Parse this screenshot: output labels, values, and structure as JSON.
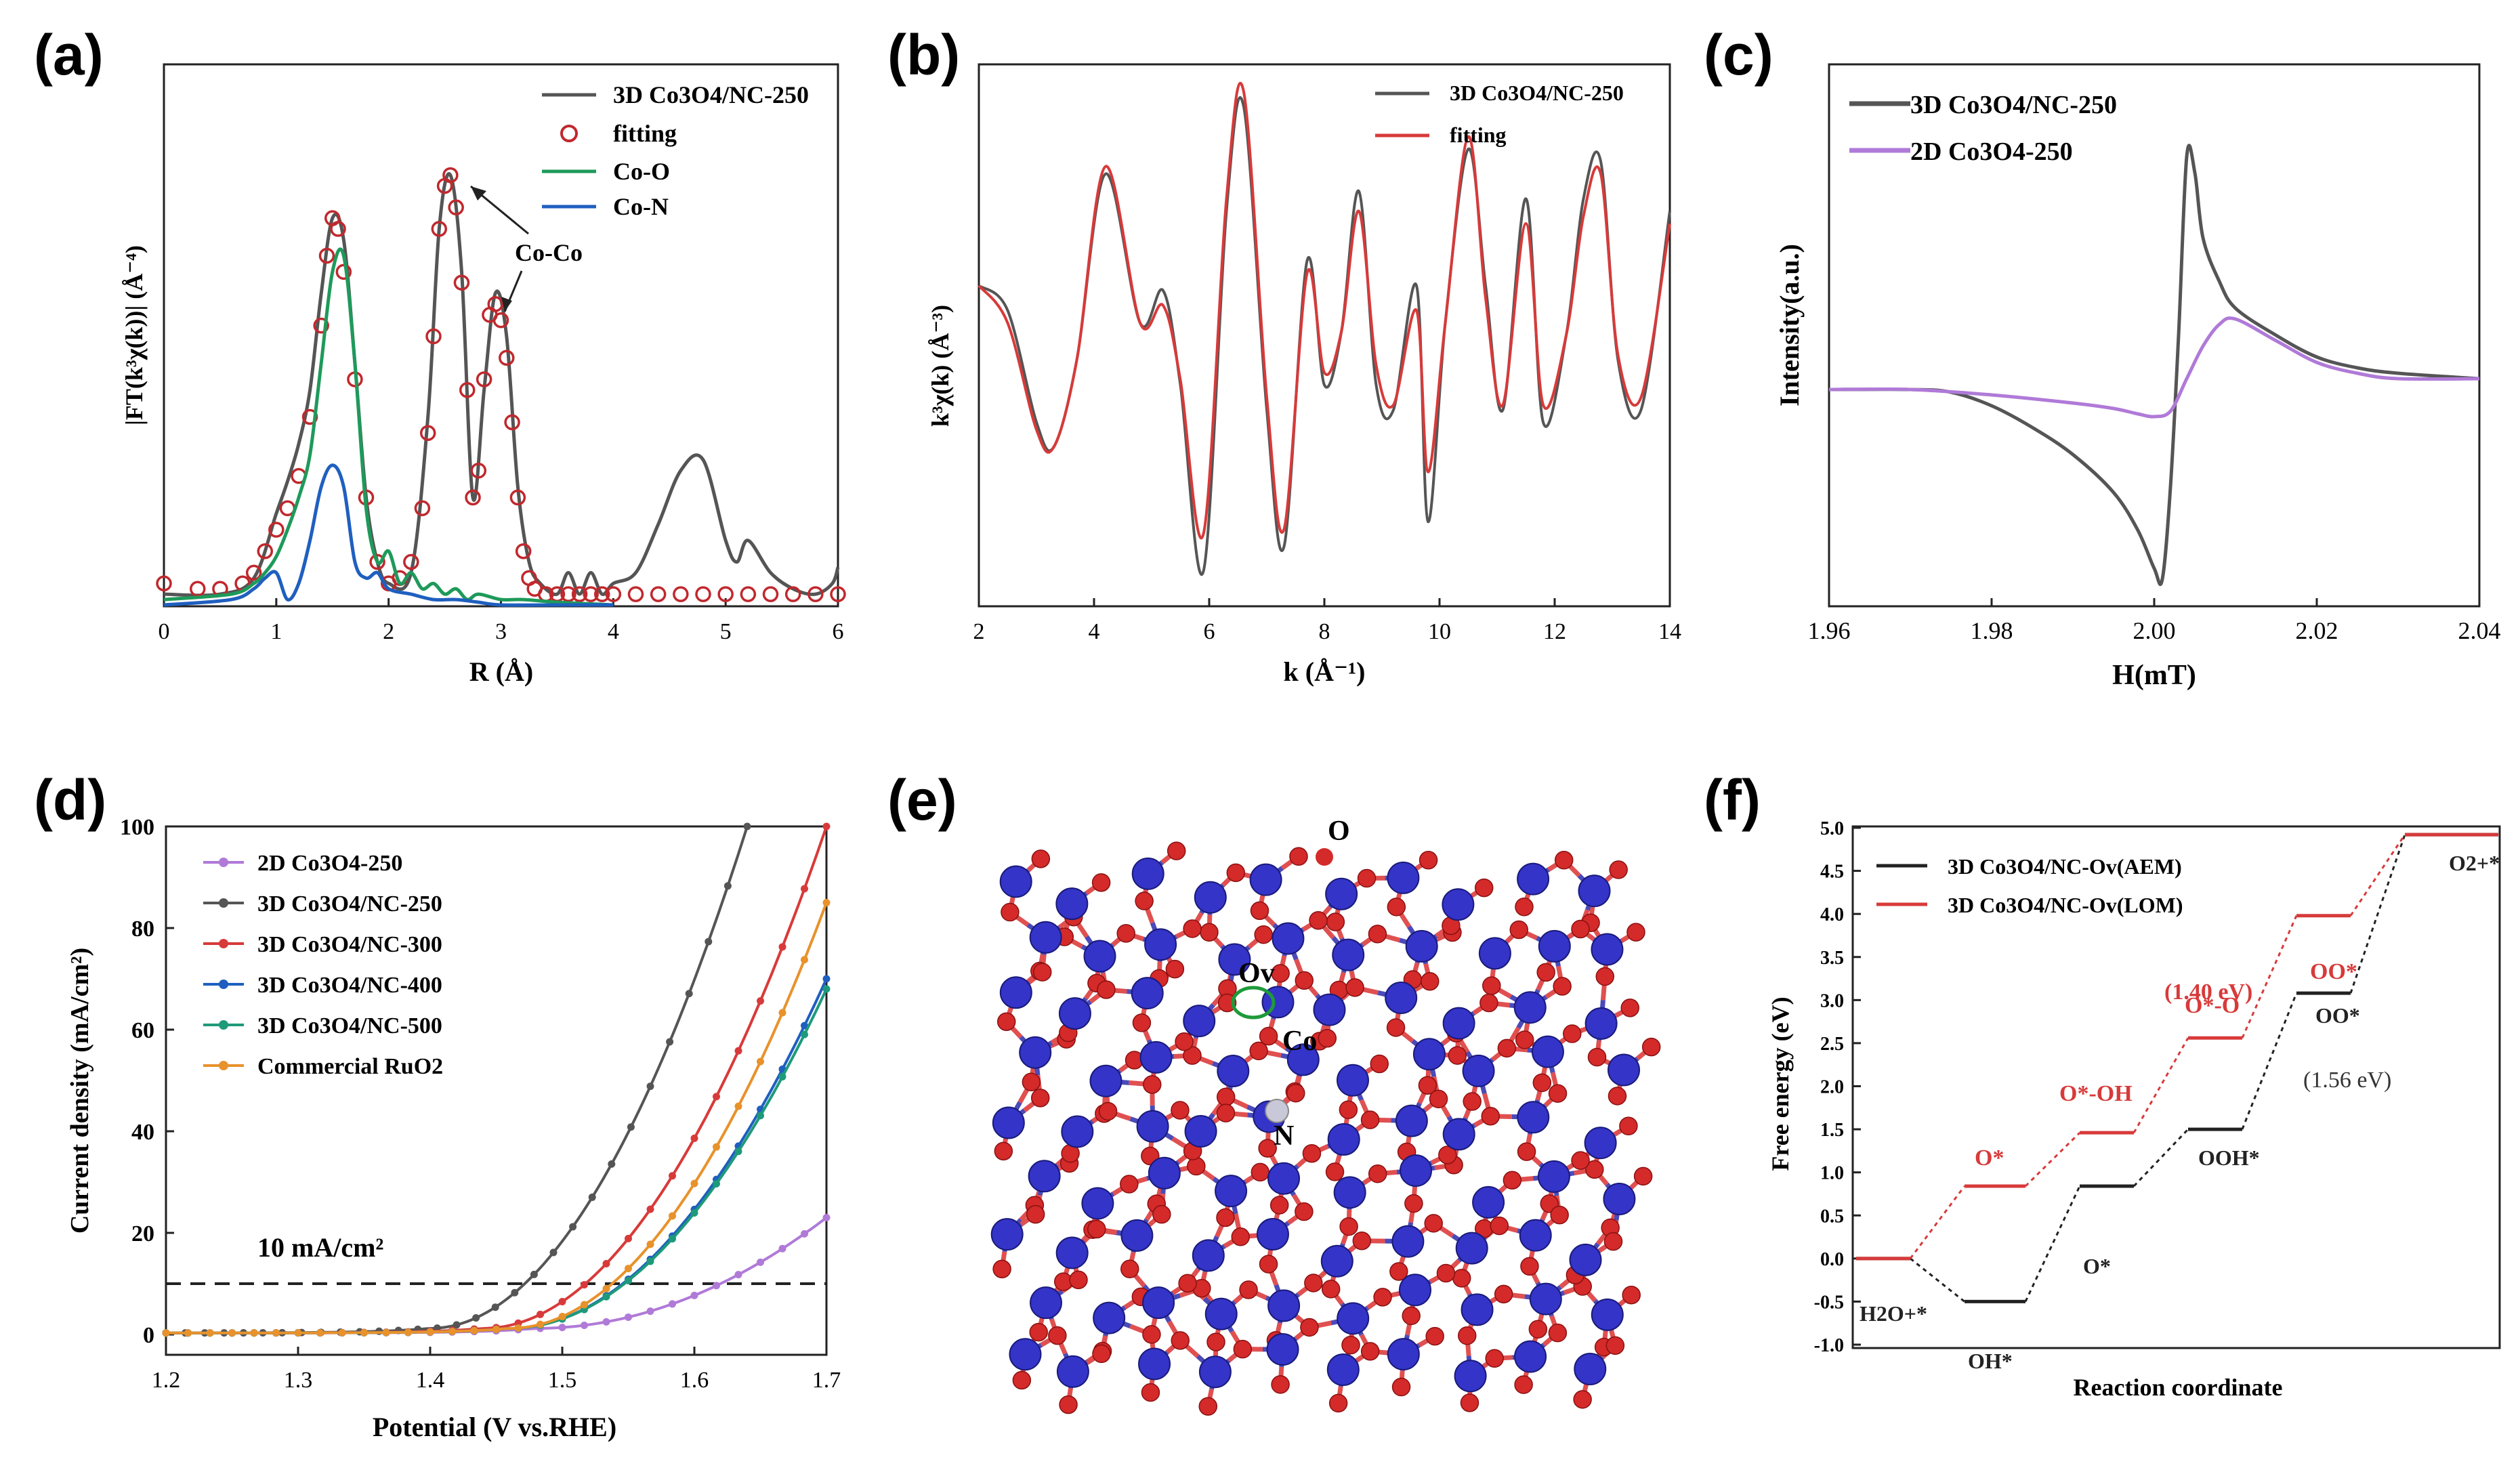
{
  "chart_data": [
    {
      "panel": "(a)",
      "type": "line",
      "xlabel": "R (Å)",
      "ylabel": "|FT(k³χ(k))| (Å⁻⁴)",
      "xlim": [
        0,
        6
      ],
      "ylim": [
        0,
        1
      ],
      "xticks": [
        "0",
        "1",
        "2",
        "3",
        "4",
        "5",
        "6"
      ],
      "legend": [
        "3D Co3O4/NC-250",
        "fitting",
        "Co-O",
        "Co-N"
      ],
      "legend_position": "top-right",
      "annotation": "Co-Co",
      "series": [
        {
          "name": "3D Co3O4/NC-250",
          "color": "#555555",
          "style": "line",
          "x": [
            0,
            0.5,
            0.8,
            1.0,
            1.1,
            1.2,
            1.3,
            1.4,
            1.5,
            1.6,
            1.7,
            1.8,
            1.9,
            2.0,
            2.2,
            2.35,
            2.45,
            2.55,
            2.65,
            2.75,
            2.85,
            2.95,
            3.05,
            3.15,
            3.25,
            3.35,
            3.5,
            3.6,
            3.7,
            3.8,
            3.9,
            4.0,
            4.2,
            4.4,
            4.6,
            4.8,
            5.0,
            5.1,
            5.2,
            5.4,
            5.6,
            5.8,
            5.95,
            6.0
          ],
          "y": [
            0.02,
            0.02,
            0.05,
            0.17,
            0.23,
            0.3,
            0.4,
            0.58,
            0.72,
            0.68,
            0.45,
            0.2,
            0.08,
            0.04,
            0.06,
            0.35,
            0.7,
            0.8,
            0.62,
            0.2,
            0.4,
            0.58,
            0.5,
            0.22,
            0.08,
            0.04,
            0.02,
            0.06,
            0.02,
            0.06,
            0.02,
            0.04,
            0.06,
            0.15,
            0.25,
            0.27,
            0.12,
            0.08,
            0.12,
            0.06,
            0.03,
            0.02,
            0.04,
            0.07
          ]
        },
        {
          "name": "fitting",
          "color": "#c0282d",
          "style": "circles",
          "x": [
            0,
            0.3,
            0.5,
            0.7,
            0.8,
            0.9,
            1.0,
            1.1,
            1.2,
            1.3,
            1.4,
            1.45,
            1.5,
            1.55,
            1.6,
            1.7,
            1.8,
            1.9,
            2.0,
            2.1,
            2.2,
            2.3,
            2.35,
            2.4,
            2.45,
            2.5,
            2.55,
            2.6,
            2.65,
            2.7,
            2.75,
            2.8,
            2.85,
            2.9,
            2.95,
            3.0,
            3.05,
            3.1,
            3.15,
            3.2,
            3.25,
            3.3,
            3.4,
            3.5,
            3.6,
            3.7,
            3.8,
            3.9,
            4.0,
            4.2,
            4.4,
            4.6,
            4.8,
            5.0,
            5.2,
            5.4,
            5.6,
            5.8,
            6.0
          ],
          "y": [
            0.04,
            0.03,
            0.03,
            0.04,
            0.06,
            0.1,
            0.14,
            0.18,
            0.24,
            0.35,
            0.52,
            0.65,
            0.72,
            0.7,
            0.62,
            0.42,
            0.2,
            0.08,
            0.04,
            0.05,
            0.08,
            0.18,
            0.32,
            0.5,
            0.7,
            0.78,
            0.8,
            0.74,
            0.6,
            0.4,
            0.2,
            0.25,
            0.42,
            0.54,
            0.56,
            0.53,
            0.46,
            0.34,
            0.2,
            0.1,
            0.05,
            0.03,
            0.02,
            0.02,
            0.02,
            0.02,
            0.02,
            0.02,
            0.02,
            0.02,
            0.02,
            0.02,
            0.02,
            0.02,
            0.02,
            0.02,
            0.02,
            0.02,
            0.02
          ]
        },
        {
          "name": "Co-O",
          "color": "#1e9a5a",
          "style": "line",
          "x": [
            0,
            0.6,
            0.8,
            0.9,
            1.0,
            1.1,
            1.2,
            1.3,
            1.4,
            1.5,
            1.6,
            1.7,
            1.8,
            1.9,
            2.0,
            2.1,
            2.2,
            2.3,
            2.4,
            2.5,
            2.6,
            2.7,
            2.8,
            3.0,
            3.2,
            3.5,
            4.0
          ],
          "y": [
            0.01,
            0.02,
            0.04,
            0.06,
            0.09,
            0.14,
            0.2,
            0.28,
            0.45,
            0.62,
            0.65,
            0.45,
            0.18,
            0.08,
            0.1,
            0.04,
            0.06,
            0.03,
            0.04,
            0.02,
            0.03,
            0.01,
            0.02,
            0.01,
            0.01,
            0.005,
            0
          ]
        },
        {
          "name": "Co-N",
          "color": "#1f5fbf",
          "style": "line",
          "x": [
            0,
            0.6,
            0.8,
            0.9,
            1.0,
            1.1,
            1.2,
            1.3,
            1.4,
            1.5,
            1.6,
            1.7,
            1.8,
            1.9,
            2.0,
            2.2,
            2.4,
            2.6,
            2.8,
            3.0,
            3.5,
            4.0
          ],
          "y": [
            0.0,
            0.01,
            0.03,
            0.05,
            0.06,
            0.01,
            0.04,
            0.12,
            0.22,
            0.26,
            0.22,
            0.08,
            0.05,
            0.06,
            0.03,
            0.02,
            0.01,
            0.01,
            0.005,
            0.0,
            0,
            0
          ]
        }
      ]
    },
    {
      "panel": "(b)",
      "type": "line",
      "xlabel": "k (Å⁻¹)",
      "ylabel": "k³χ(k) (Å⁻³)",
      "xlim": [
        2,
        14
      ],
      "ylim": [
        -1.05,
        1.05
      ],
      "xticks": [
        "2",
        "4",
        "6",
        "8",
        "10",
        "12",
        "14"
      ],
      "legend": [
        "3D Co3O4/NC-250",
        "fitting"
      ],
      "legend_position": "top-right",
      "series": [
        {
          "name": "3D Co3O4/NC-250",
          "color": "#555555",
          "x": [
            2,
            2.5,
            3.0,
            3.3,
            3.7,
            4.2,
            4.8,
            5.2,
            5.5,
            5.9,
            6.3,
            6.6,
            7.0,
            7.3,
            7.7,
            8.0,
            8.3,
            8.6,
            8.9,
            9.2,
            9.6,
            9.8,
            10.1,
            10.5,
            10.8,
            11.1,
            11.5,
            11.8,
            12.2,
            12.5,
            12.8,
            13.1,
            13.5,
            14.0
          ],
          "y": [
            0.2,
            0.1,
            -0.35,
            -0.45,
            -0.1,
            0.65,
            0.05,
            0.18,
            -0.2,
            -0.95,
            0.5,
            0.92,
            -0.3,
            -0.85,
            0.3,
            -0.2,
            0.02,
            0.58,
            -0.2,
            -0.3,
            0.2,
            -0.75,
            0.05,
            0.75,
            0.2,
            -0.3,
            0.55,
            -0.35,
            0.0,
            0.55,
            0.7,
            -0.1,
            -0.3,
            0.5
          ]
        },
        {
          "name": "fitting",
          "color": "#d83a3a",
          "x": [
            2,
            2.5,
            3.0,
            3.3,
            3.7,
            4.2,
            4.8,
            5.2,
            5.5,
            5.9,
            6.3,
            6.6,
            7.0,
            7.3,
            7.7,
            8.0,
            8.3,
            8.6,
            8.9,
            9.2,
            9.6,
            9.8,
            10.1,
            10.5,
            10.8,
            11.1,
            11.5,
            11.8,
            12.2,
            12.5,
            12.8,
            13.1,
            13.5,
            14.0
          ],
          "y": [
            0.2,
            0.05,
            -0.38,
            -0.45,
            -0.1,
            0.68,
            0.05,
            0.12,
            -0.18,
            -0.8,
            0.55,
            0.98,
            -0.25,
            -0.78,
            0.25,
            -0.15,
            0.02,
            0.5,
            -0.12,
            -0.28,
            0.1,
            -0.55,
            0.05,
            0.8,
            0.15,
            -0.28,
            0.45,
            -0.28,
            0.0,
            0.48,
            0.65,
            -0.08,
            -0.25,
            0.45
          ]
        }
      ]
    },
    {
      "panel": "(c)",
      "type": "line",
      "xlabel": "H(mT)",
      "ylabel": "Intensity(a.u.)",
      "xlim": [
        1.96,
        2.04
      ],
      "ylim": [
        0,
        1
      ],
      "xticks": [
        "1.96",
        "1.98",
        "2.00",
        "2.02",
        "2.04"
      ],
      "legend": [
        "3D Co3O4/NC-250",
        "2D Co3O4-250"
      ],
      "legend_position": "top-left",
      "series": [
        {
          "name": "3D Co3O4/NC-250",
          "color": "#555555",
          "x": [
            1.96,
            1.97,
            1.975,
            1.98,
            1.985,
            1.99,
            1.995,
            1.998,
            2.0,
            2.001,
            2.002,
            2.003,
            2.004,
            2.005,
            2.006,
            2.008,
            2.01,
            2.015,
            2.02,
            2.025,
            2.03,
            2.04
          ],
          "y": [
            0.4,
            0.4,
            0.395,
            0.37,
            0.33,
            0.28,
            0.21,
            0.14,
            0.07,
            0.05,
            0.22,
            0.5,
            0.83,
            0.8,
            0.68,
            0.6,
            0.55,
            0.5,
            0.46,
            0.44,
            0.43,
            0.42
          ]
        },
        {
          "name": "2D Co3O4-250",
          "color": "#b07ad8",
          "x": [
            1.96,
            1.97,
            1.98,
            1.99,
            1.995,
            1.998,
            2.0,
            2.002,
            2.004,
            2.006,
            2.008,
            2.01,
            2.015,
            2.02,
            2.025,
            2.03,
            2.04
          ],
          "y": [
            0.4,
            0.4,
            0.39,
            0.375,
            0.365,
            0.355,
            0.35,
            0.36,
            0.42,
            0.48,
            0.52,
            0.53,
            0.49,
            0.45,
            0.43,
            0.42,
            0.42
          ]
        }
      ]
    },
    {
      "panel": "(d)",
      "type": "line",
      "xlabel": "Potential (V vs.RHE)",
      "ylabel": "Current density (mA/cm²)",
      "xlim": [
        1.2,
        1.7
      ],
      "ylim": [
        0,
        100
      ],
      "xticks": [
        "1.2",
        "1.3",
        "1.4",
        "1.5",
        "1.6",
        "1.7"
      ],
      "yticks": [
        "0",
        "20",
        "40",
        "60",
        "80",
        "100"
      ],
      "legend": [
        "2D Co3O4-250",
        "3D Co3O4/NC-250",
        "3D Co3O4/NC-300",
        "3D Co3O4/NC-400",
        "3D Co3O4/NC-500",
        "Commercial RuO2"
      ],
      "legend_position": "top-left",
      "annotation": "10 mA/cm²",
      "reference_line_y": 10,
      "onsets": [
        1.48,
        1.4,
        1.44,
        1.46,
        1.46,
        1.46
      ],
      "limits": [
        1.7,
        1.64,
        1.7,
        1.7,
        1.7,
        1.7
      ],
      "end_values": [
        23,
        100,
        100,
        70,
        68,
        85
      ],
      "colors": [
        "#b07ad8",
        "#555555",
        "#d83a3a",
        "#1f5fbf",
        "#1e9a7a",
        "#e8922c"
      ]
    },
    {
      "panel": "(e)",
      "type": "other",
      "atom_labels": [
        "O",
        "Ov",
        "Co",
        "N"
      ]
    },
    {
      "panel": "(f)",
      "type": "line",
      "xlabel": "Reaction coordinate",
      "ylabel": "Free energy (eV)",
      "ylim": [
        -1.0,
        5.0
      ],
      "yticks": [
        "-1.0",
        "-0.5",
        "0.0",
        "0.5",
        "1.0",
        "1.5",
        "2.0",
        "2.5",
        "3.0",
        "3.5",
        "4.0",
        "4.5",
        "5.0"
      ],
      "legend": [
        "3D Co3O4/NC-Ov(AEM)",
        "3D Co3O4/NC-Ov(LOM)"
      ],
      "legend_position": "top-left",
      "annotations": [
        "(1.40 eV)",
        "(1.56 eV)"
      ],
      "series": [
        {
          "name": "3D Co3O4/NC-Ov(AEM)",
          "color": "#222222",
          "levels": [
            0.0,
            -0.5,
            0.84,
            1.5,
            3.08,
            4.92
          ],
          "labels": [
            "H2O+*",
            "OH*",
            "O*",
            "OOH*",
            "OO*",
            "O2+*"
          ]
        },
        {
          "name": "3D Co3O4/NC-Ov(LOM)",
          "color": "#d83a3a",
          "levels": [
            0.0,
            0.84,
            1.46,
            2.56,
            3.98,
            4.92
          ],
          "labels": [
            "",
            "O*",
            "O*-OH",
            "O*-O",
            "OO*",
            ""
          ]
        }
      ]
    }
  ],
  "panel_labels": [
    "(a)",
    "(b)",
    "(c)",
    "(d)",
    "(e)",
    "(f)"
  ]
}
